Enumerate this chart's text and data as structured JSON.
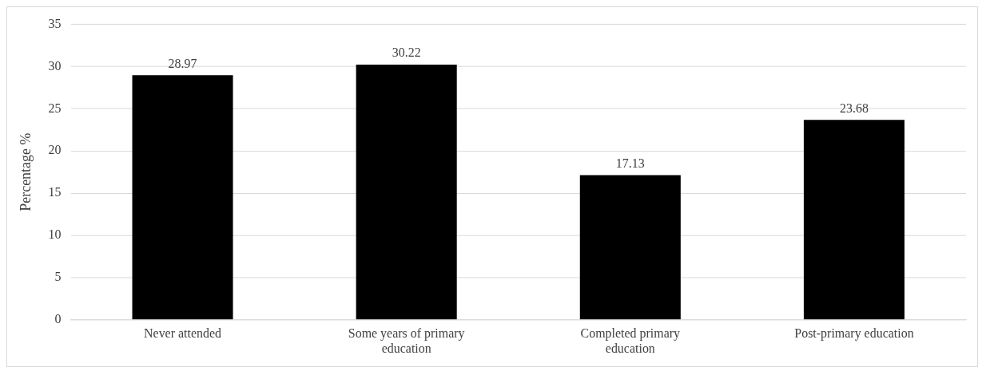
{
  "chart_data": {
    "type": "bar",
    "ylabel": "Percentage %",
    "categories": [
      "Never attended",
      "Some years of primary education",
      "Completed primary education",
      "Post-primary education"
    ],
    "values": [
      28.97,
      30.22,
      17.13,
      23.68
    ],
    "color": "#000000",
    "ylim": [
      0,
      35
    ],
    "yticks": [
      0,
      5,
      10,
      15,
      20,
      25,
      30,
      35
    ],
    "grid": "y",
    "legend": false,
    "data_labels": true
  }
}
